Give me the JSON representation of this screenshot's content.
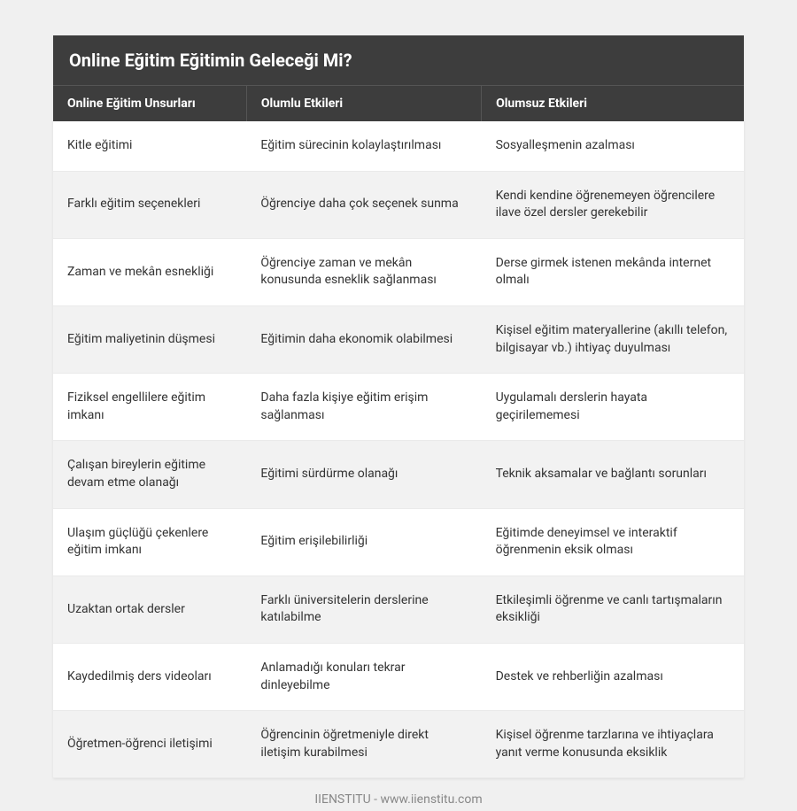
{
  "title": "Online Eğitim Eğitimin Geleceği Mi?",
  "columns": [
    "Online Eğitim Unsurları",
    "Olumlu Etkileri",
    "Olumsuz Etkileri"
  ],
  "rows": [
    [
      "Kitle eğitimi",
      "Eğitim sürecinin kolaylaştırılması",
      "Sosyalleşmenin azalması"
    ],
    [
      "Farklı eğitim seçenekleri",
      "Öğrenciye daha çok seçenek sunma",
      "Kendi kendine öğrenemeyen öğrencilere ilave özel dersler gerekebilir"
    ],
    [
      "Zaman ve mekân esnekliği",
      "Öğrenciye zaman ve mekân konusunda esneklik sağlanması",
      "Derse girmek istenen mekânda internet olmalı"
    ],
    [
      "Eğitim maliyetinin düşmesi",
      "Eğitimin daha ekonomik olabilmesi",
      "Kişisel eğitim materyallerine (akıllı telefon, bilgisayar vb.) ihtiyaç duyulması"
    ],
    [
      "Fiziksel engellilere eğitim imkanı",
      "Daha fazla kişiye eğitim erişim sağlanması",
      "Uygulamalı derslerin hayata geçirilememesi"
    ],
    [
      "Çalışan bireylerin eğitime devam etme olanağı",
      "Eğitimi sürdürme olanağı",
      "Teknik aksamalar ve bağlantı sorunları"
    ],
    [
      "Ulaşım güçlüğü çekenlere eğitim imkanı",
      "Eğitim erişilebilirliği",
      "Eğitimde deneyimsel ve interaktif öğrenmenin eksik olması"
    ],
    [
      "Uzaktan ortak dersler",
      "Farklı üniversitelerin derslerine katılabilme",
      "Etkileşimli öğrenme ve canlı tartışmaların eksikliği"
    ],
    [
      "Kaydedilmiş ders videoları",
      "Anlamadığı konuları tekrar dinleyebilme",
      "Destek ve rehberliğin azalması"
    ],
    [
      "Öğretmen-öğrenci iletişimi",
      "Öğrencinin öğretmeniyle direkt iletişim kurabilmesi",
      "Kişisel öğrenme tarzlarına ve ihtiyaçlara yanıt verme konusunda eksiklik"
    ]
  ],
  "footer": "IIENSTITU - www.iienstitu.com",
  "colors": {
    "page_bg": "#f0f0f0",
    "table_bg": "#ffffff",
    "header_bg": "#3d3d3d",
    "header_text": "#ffffff",
    "cell_text": "#333333",
    "row_alt_bg": "#f2f2f2",
    "footer_text": "#888888"
  },
  "column_widths": [
    "28%",
    "34%",
    "38%"
  ]
}
